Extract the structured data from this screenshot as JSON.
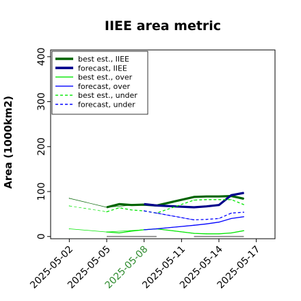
{
  "chart_data": {
    "type": "line",
    "title": "IIEE area metric",
    "xlabel": "",
    "ylabel": "Area (1000km2)",
    "ylim": [
      -5,
      415
    ],
    "xlim": [
      "2025-04-30T12:00",
      "2025-05-18T12:00"
    ],
    "yticks": [
      0,
      100,
      200,
      300,
      400
    ],
    "xticks": [
      "2025-05-02",
      "2025-05-05",
      "2025-05-08",
      "2025-05-11",
      "2025-05-14",
      "2025-05-17"
    ],
    "highlight_tick": "2025-05-08",
    "highlight_color": "#2e8b2e",
    "legend_position": "top-left",
    "grid": false,
    "series": [
      {
        "name": "best est., IIEE",
        "color": "#006400",
        "style": "solid",
        "width": "thick",
        "x": [
          "2025-05-05",
          "2025-05-06",
          "2025-05-07",
          "2025-05-08",
          "2025-05-09",
          "2025-05-12",
          "2025-05-13",
          "2025-05-14",
          "2025-05-15",
          "2025-05-16"
        ],
        "y": [
          65,
          72,
          70,
          71,
          69,
          88,
          89,
          89,
          90,
          84
        ]
      },
      {
        "name": "forecast, IIEE",
        "color": "#00008b",
        "style": "solid",
        "width": "thick",
        "x": [
          "2025-05-08",
          "2025-05-09",
          "2025-05-12",
          "2025-05-13",
          "2025-05-14",
          "2025-05-15",
          "2025-05-16"
        ],
        "y": [
          72,
          69,
          65,
          67,
          70,
          92,
          97
        ]
      },
      {
        "name": "best est., over",
        "color": "#00e600",
        "style": "solid",
        "width": "thin",
        "x": [
          "2025-05-05",
          "2025-05-06",
          "2025-05-07",
          "2025-05-08",
          "2025-05-09",
          "2025-05-12",
          "2025-05-13",
          "2025-05-14",
          "2025-05-15",
          "2025-05-16"
        ],
        "y": [
          10,
          8,
          12,
          15,
          17,
          7,
          6,
          6,
          8,
          13
        ]
      },
      {
        "name": "forecast, over",
        "color": "#0000ff",
        "style": "solid",
        "width": "thin",
        "x": [
          "2025-05-08",
          "2025-05-09",
          "2025-05-12",
          "2025-05-13",
          "2025-05-14",
          "2025-05-15",
          "2025-05-16"
        ],
        "y": [
          15,
          17,
          25,
          28,
          32,
          40,
          44
        ]
      },
      {
        "name": "best est., under",
        "color": "#00e600",
        "style": "dashed",
        "width": "thin",
        "x": [
          "2025-05-05",
          "2025-05-06",
          "2025-05-07",
          "2025-05-08",
          "2025-05-09",
          "2025-05-12",
          "2025-05-13",
          "2025-05-14",
          "2025-05-15",
          "2025-05-16"
        ],
        "y": [
          55,
          64,
          59,
          57,
          52,
          81,
          82,
          82,
          82,
          71
        ]
      },
      {
        "name": "forecast, under",
        "color": "#0000ff",
        "style": "dashed",
        "width": "thin",
        "x": [
          "2025-05-08",
          "2025-05-09",
          "2025-05-12",
          "2025-05-13",
          "2025-05-14",
          "2025-05-15",
          "2025-05-16"
        ],
        "y": [
          57,
          52,
          37,
          38,
          40,
          52,
          54
        ]
      }
    ],
    "unlabeled_series": [
      {
        "color": "#006400",
        "style": "solid",
        "width": "hair",
        "x": [
          "2025-05-02",
          "2025-05-05",
          "2025-05-08",
          "2025-05-09",
          "2025-05-12"
        ],
        "y": [
          85,
          65,
          72,
          69,
          88
        ]
      },
      {
        "color": "#00e600",
        "style": "dashed",
        "width": "hair",
        "x": [
          "2025-05-02",
          "2025-05-05"
        ],
        "y": [
          68,
          55
        ]
      },
      {
        "color": "#00e600",
        "style": "solid",
        "width": "hair",
        "x": [
          "2025-05-02",
          "2025-05-05",
          "2025-05-08",
          "2025-05-09",
          "2025-05-12"
        ],
        "y": [
          17,
          10,
          15,
          17,
          7
        ]
      },
      {
        "color": "#0000ff",
        "style": "dashed",
        "width": "hair",
        "x": [
          "2025-05-09",
          "2025-05-12"
        ],
        "y": [
          52,
          37
        ]
      },
      {
        "color": "#0000ff",
        "style": "solid",
        "width": "hair",
        "x": [
          "2025-05-09",
          "2025-05-12"
        ],
        "y": [
          17,
          25
        ]
      }
    ],
    "baselines": [
      {
        "color": "#808080",
        "x_start": "2025-05-05",
        "x_end": "2025-05-09",
        "y": 0
      },
      {
        "color": "#808080",
        "x_start": "2025-05-12",
        "x_end": "2025-05-16",
        "y": 0
      }
    ]
  }
}
